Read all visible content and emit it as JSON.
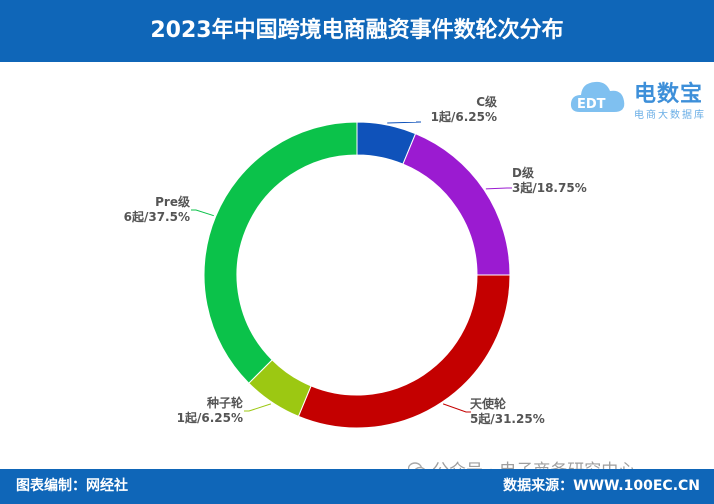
{
  "header": {
    "title": "2023年中国跨境电商融资事件数轮次分布"
  },
  "logo": {
    "name": "电数宝",
    "subtitle": "电商大数据库",
    "badge_text": "EDT"
  },
  "chart_data": {
    "type": "pie",
    "title": "2023年中国跨境电商融资事件数轮次分布",
    "donut": true,
    "slices": [
      {
        "name": "C级",
        "count_label": "1起/6.25%",
        "count": 1,
        "percent": 6.25,
        "color": "#0f52ba"
      },
      {
        "name": "D级",
        "count_label": "3起/18.75%",
        "count": 3,
        "percent": 18.75,
        "color": "#9b1bd1"
      },
      {
        "name": "天使轮",
        "count_label": "5起/31.25%",
        "count": 5,
        "percent": 31.25,
        "color": "#c40000"
      },
      {
        "name": "种子轮",
        "count_label": "1起/6.25%",
        "count": 1,
        "percent": 6.25,
        "color": "#9cc812"
      },
      {
        "name": "Pre级",
        "count_label": "6起/37.5%",
        "count": 6,
        "percent": 37.5,
        "color": "#0bc24a"
      }
    ],
    "label_color": "#555555"
  },
  "footer": {
    "left": "图表编制：网经社",
    "right": "数据来源：WWW.100EC.CN"
  },
  "watermark": {
    "text": "公众号 · 电子商务研究中心"
  }
}
